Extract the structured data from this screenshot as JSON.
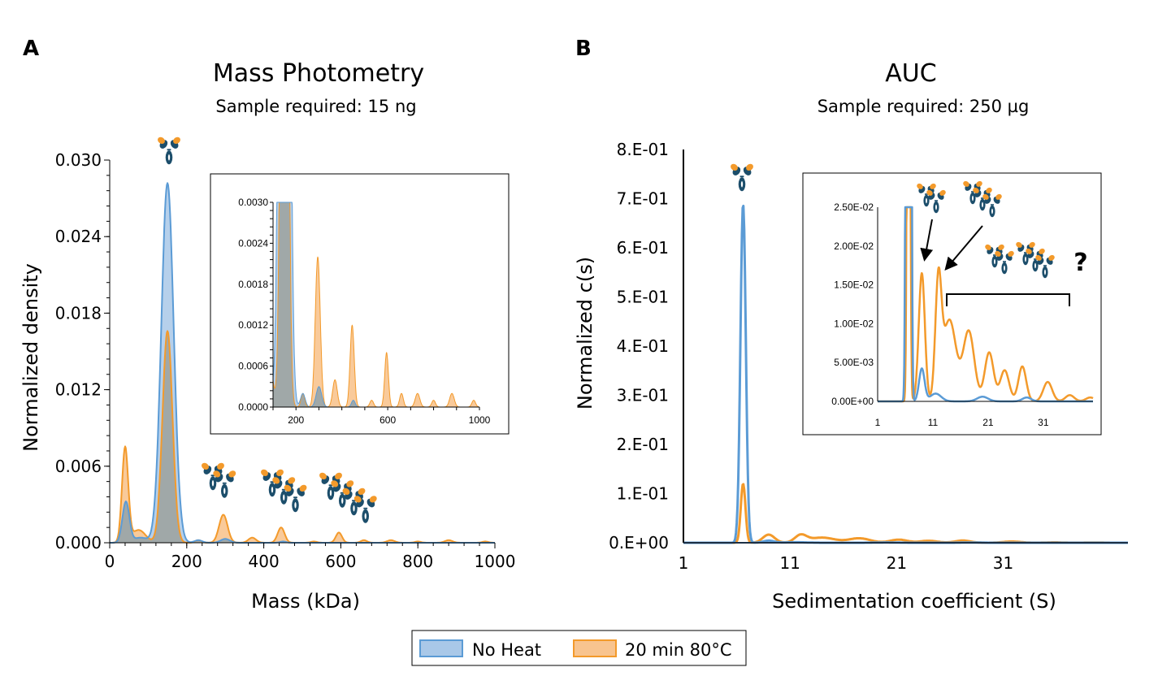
{
  "colors": {
    "no_heat_line": "#5b9bd5",
    "no_heat_fill": "#a9c8e8",
    "heated_line": "#f39a2b",
    "heated_fill": "#f8c48f",
    "overlap_fill": "#a0a8a8",
    "antibody_body": "#1c4e6b",
    "antibody_tip": "#f39a2b"
  },
  "legend": {
    "items": [
      {
        "label": "No Heat",
        "series": "no_heat"
      },
      {
        "label": "20 min 80°C",
        "series": "heated"
      }
    ]
  },
  "chart_data": [
    {
      "id": "A",
      "panel_letter": "A",
      "type": "area",
      "title": "Mass Photometry",
      "subtitle": "Sample required: 15 ng",
      "xlabel": "Mass (kDa)",
      "ylabel": "Normalized density",
      "xlim": [
        0,
        1000
      ],
      "ylim": [
        0,
        0.03
      ],
      "xticks": [
        0,
        200,
        400,
        600,
        800,
        1000
      ],
      "xtick_labels": [
        "0",
        "200",
        "400",
        "600",
        "800",
        "1000"
      ],
      "yticks": [
        0,
        0.006,
        0.012,
        0.018,
        0.024,
        0.03
      ],
      "ytick_labels": [
        "0.000",
        "0.006",
        "0.012",
        "0.018",
        "0.024",
        "0.030"
      ],
      "grid": false,
      "series": [
        {
          "name": "No Heat",
          "key": "no_heat",
          "peaks": [
            [
              42,
              0.0032,
              9
            ],
            [
              80,
              0.0004,
              18
            ],
            [
              150,
              0.0282,
              16
            ],
            [
              230,
              0.0002,
              10
            ],
            [
              300,
              0.0003,
              12
            ],
            [
              450,
              0.0001,
              8
            ]
          ]
        },
        {
          "name": "20 min 80°C",
          "key": "heated",
          "peaks": [
            [
              40,
              0.0074,
              8
            ],
            [
              75,
              0.001,
              18
            ],
            [
              150,
              0.0166,
              13
            ],
            [
              230,
              0.0002,
              8
            ],
            [
              295,
              0.0022,
              11
            ],
            [
              370,
              0.0004,
              10
            ],
            [
              445,
              0.0012,
              9
            ],
            [
              530,
              0.0001,
              8
            ],
            [
              595,
              0.0008,
              8
            ],
            [
              660,
              0.0002,
              8
            ],
            [
              730,
              0.0002,
              10
            ],
            [
              800,
              0.0001,
              8
            ],
            [
              880,
              0.0002,
              10
            ],
            [
              975,
              0.0001,
              8
            ]
          ]
        }
      ],
      "annotations": [
        "monomer ~150 kDa",
        "dimer ~300 kDa",
        "trimer ~450 kDa",
        "tetramer ~600 kDa"
      ],
      "inset": {
        "xlim": [
          100,
          1000
        ],
        "ylim": [
          0,
          0.003
        ],
        "xticks": [
          200,
          600,
          1000
        ],
        "xtick_labels": [
          "200",
          "600",
          "1000"
        ],
        "yticks": [
          0,
          0.0006,
          0.0012,
          0.0018,
          0.0024,
          0.003
        ],
        "ytick_labels": [
          "0.0000",
          "0.0006",
          "0.0012",
          "0.0018",
          "0.0024",
          "0.0030"
        ]
      }
    },
    {
      "id": "B",
      "panel_letter": "B",
      "type": "line",
      "title": "AUC",
      "subtitle": "Sample required: 250 µg",
      "xlabel": "Sedimentation coefficient (S)",
      "ylabel": "Normalized c(s)",
      "xlim": [
        1,
        42.7
      ],
      "ylim": [
        0,
        0.8
      ],
      "xticks": [
        1,
        11,
        21,
        31
      ],
      "xtick_labels": [
        "1",
        "11",
        "21",
        "31"
      ],
      "yticks": [
        0,
        0.1,
        0.2,
        0.3,
        0.4,
        0.5,
        0.6,
        0.7,
        0.8
      ],
      "ytick_labels": [
        "0.E+00",
        "1.E-01",
        "2.E-01",
        "3.E-01",
        "4.E-01",
        "5.E-01",
        "6.E-01",
        "7.E-01",
        "8.E-01"
      ],
      "grid": false,
      "series": [
        {
          "name": "No Heat",
          "key": "no_heat",
          "peaks": [
            [
              6.6,
              0.69,
              0.25
            ],
            [
              9.0,
              0.0042,
              0.5
            ],
            [
              11.5,
              0.001,
              1.0
            ],
            [
              20,
              0.0006,
              1.0
            ],
            [
              28,
              0.0005,
              0.8
            ]
          ]
        },
        {
          "name": "20 min 80°C",
          "key": "heated",
          "peaks": [
            [
              6.6,
              0.12,
              0.22
            ],
            [
              9.0,
              0.0165,
              0.55
            ],
            [
              12.0,
              0.0145,
              0.55
            ],
            [
              14.0,
              0.0105,
              1.2
            ],
            [
              17.5,
              0.009,
              1.0
            ],
            [
              21.2,
              0.0063,
              0.8
            ],
            [
              24.0,
              0.004,
              0.8
            ],
            [
              27.2,
              0.0045,
              0.7
            ],
            [
              31.8,
              0.0025,
              0.8
            ],
            [
              35.8,
              0.0008,
              0.8
            ],
            [
              39.5,
              0.0005,
              0.8
            ]
          ]
        }
      ],
      "annotations": [
        "monomer",
        "dimer",
        "trimer",
        "higher-order aggregates ?"
      ],
      "inset": {
        "xlim": [
          1,
          40
        ],
        "ylim": [
          0,
          0.025
        ],
        "xticks": [
          1,
          11,
          21,
          31
        ],
        "xtick_labels": [
          "1",
          "11",
          "21",
          "31"
        ],
        "yticks": [
          0,
          0.005,
          0.01,
          0.015,
          0.02,
          0.025
        ],
        "ytick_labels": [
          "0.00E+00",
          "5.00E-03",
          "1.00E-02",
          "1.50E-02",
          "2.00E-02",
          "2.50E-02"
        ],
        "question_mark": "?"
      }
    }
  ]
}
